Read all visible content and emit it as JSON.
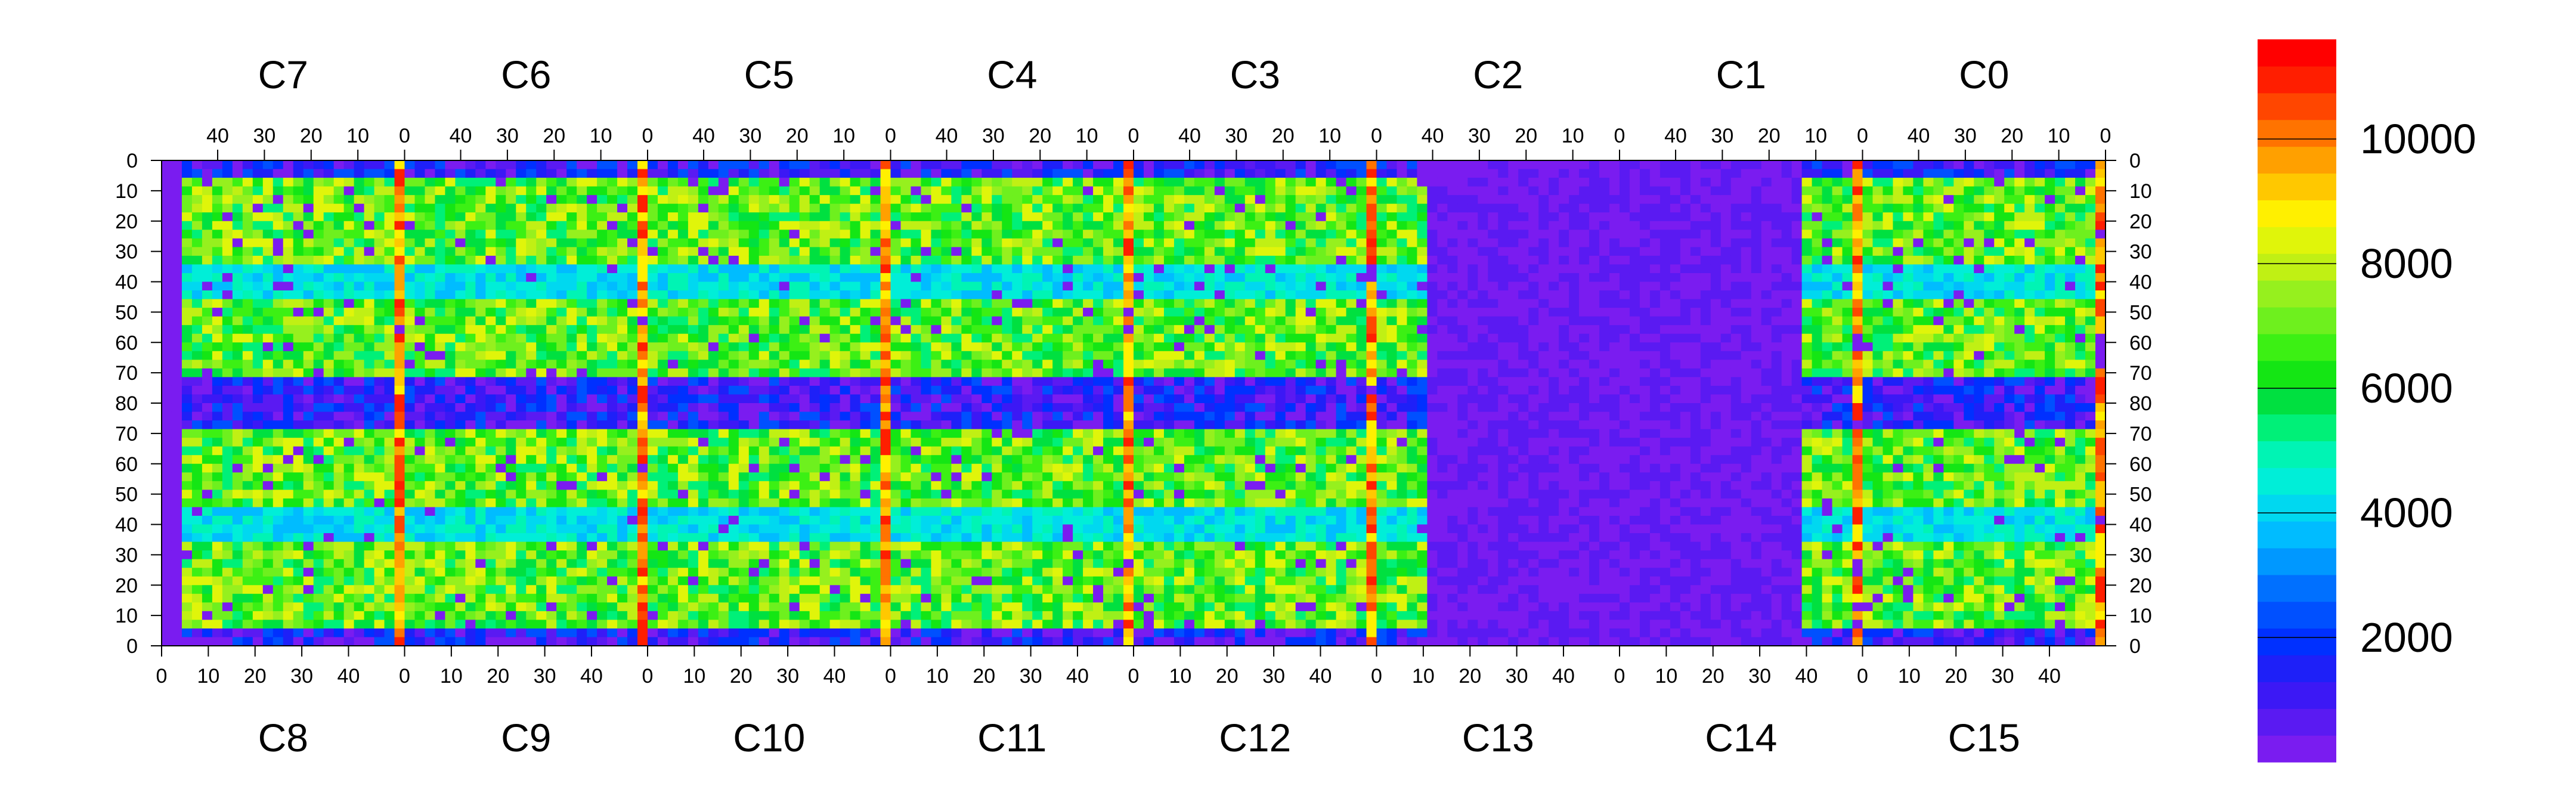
{
  "chart_data": {
    "type": "heatmap",
    "title": "",
    "xlabel": "",
    "ylabel": "",
    "grid": false,
    "top_chips": [
      "C7",
      "C6",
      "C5",
      "C4",
      "C3",
      "C2",
      "C1",
      "C0"
    ],
    "bottom_chips": [
      "C8",
      "C9",
      "C10",
      "C11",
      "C12",
      "C13",
      "C14",
      "C15"
    ],
    "x_ticks_top": [
      "40",
      "30",
      "20",
      "10",
      "0"
    ],
    "x_ticks_bottom": [
      "0",
      "10",
      "20",
      "30",
      "40"
    ],
    "x_tick_values_top": [
      40,
      30,
      20,
      10,
      0
    ],
    "x_tick_values_bottom": [
      0,
      10,
      20,
      30,
      40
    ],
    "x_range_per_chip": [
      0,
      52
    ],
    "y_ticks": [
      "0",
      "10",
      "20",
      "30",
      "40",
      "50",
      "60",
      "70",
      "80",
      "70",
      "60",
      "50",
      "40",
      "30",
      "20",
      "10",
      "0"
    ],
    "y_range": [
      0,
      160
    ],
    "colorbar": {
      "ticks": [
        "2000",
        "4000",
        "6000",
        "8000",
        "10000"
      ],
      "tick_values": [
        2000,
        4000,
        6000,
        8000,
        10000
      ],
      "range": [
        0,
        11600
      ],
      "colors": [
        "#7a1cf0",
        "#5a1af2",
        "#3c18f5",
        "#1e20f8",
        "#0030ff",
        "#0050ff",
        "#0070ff",
        "#0098ff",
        "#00bcff",
        "#00d8f0",
        "#00eed8",
        "#00f4b4",
        "#00f078",
        "#00e040",
        "#14e614",
        "#3cf014",
        "#6ef01e",
        "#96f01e",
        "#c0f014",
        "#e0f50a",
        "#fff000",
        "#ffc800",
        "#ffa000",
        "#ff7300",
        "#ff4600",
        "#ff1e00",
        "#ff0000"
      ]
    },
    "chip_profile": {
      "pixel_hit_level": [
        3,
        7
      ],
      "gap_dip": [
        14,
        18
      ],
      "dead_pixel_level": [
        0,
        1
      ]
    }
  }
}
